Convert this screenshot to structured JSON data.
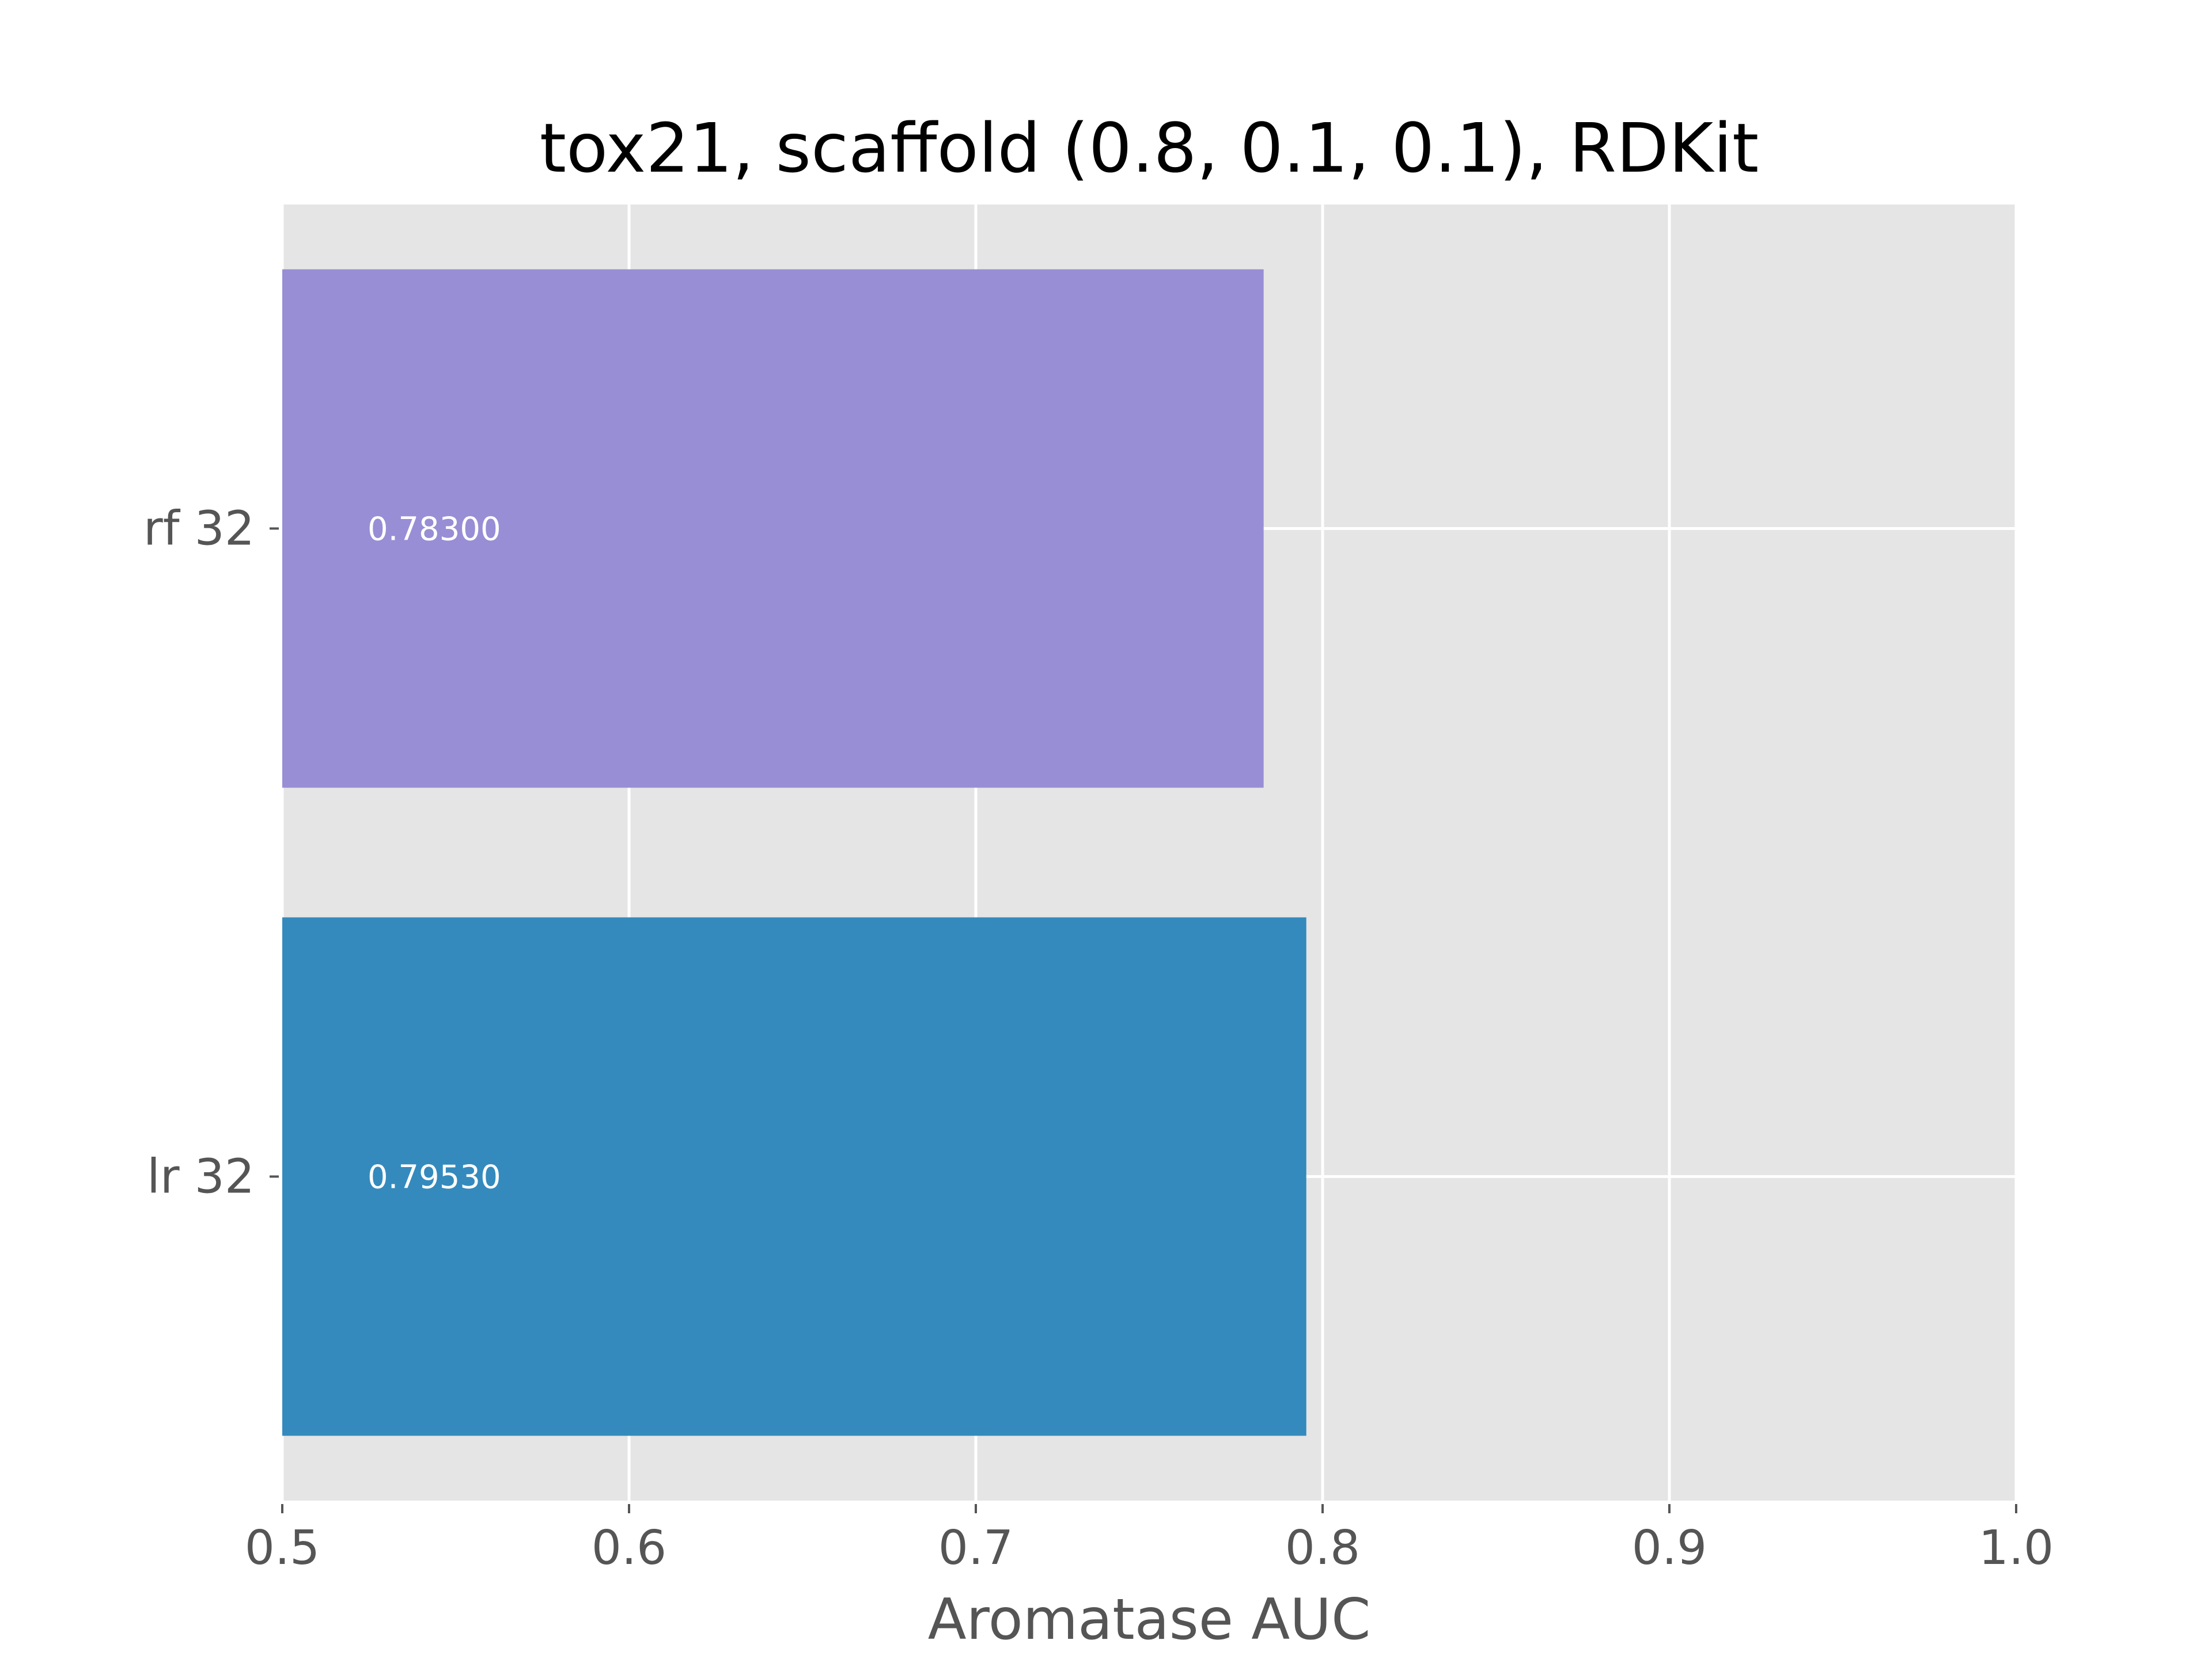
{
  "chart_data": {
    "type": "bar",
    "orientation": "horizontal",
    "title": "tox21, scaffold (0.8, 0.1, 0.1), RDKit",
    "xlabel": "Aromatase AUC",
    "ylabel": "",
    "xlim": [
      0.5,
      1.0
    ],
    "x_ticks": [
      0.5,
      0.6,
      0.7,
      0.8,
      0.9,
      1.0
    ],
    "x_tick_labels": [
      "0.5",
      "0.6",
      "0.7",
      "0.8",
      "0.9",
      "1.0"
    ],
    "categories": [
      "rf 32",
      "lr 32"
    ],
    "values": [
      0.783,
      0.7953
    ],
    "value_labels": [
      "0.78300",
      "0.79530"
    ],
    "bar_colors": [
      "#988ED5",
      "#348ABD"
    ],
    "background_color": "#E5E5E5",
    "grid_color": "#FFFFFF",
    "grid": true,
    "legend": false
  }
}
